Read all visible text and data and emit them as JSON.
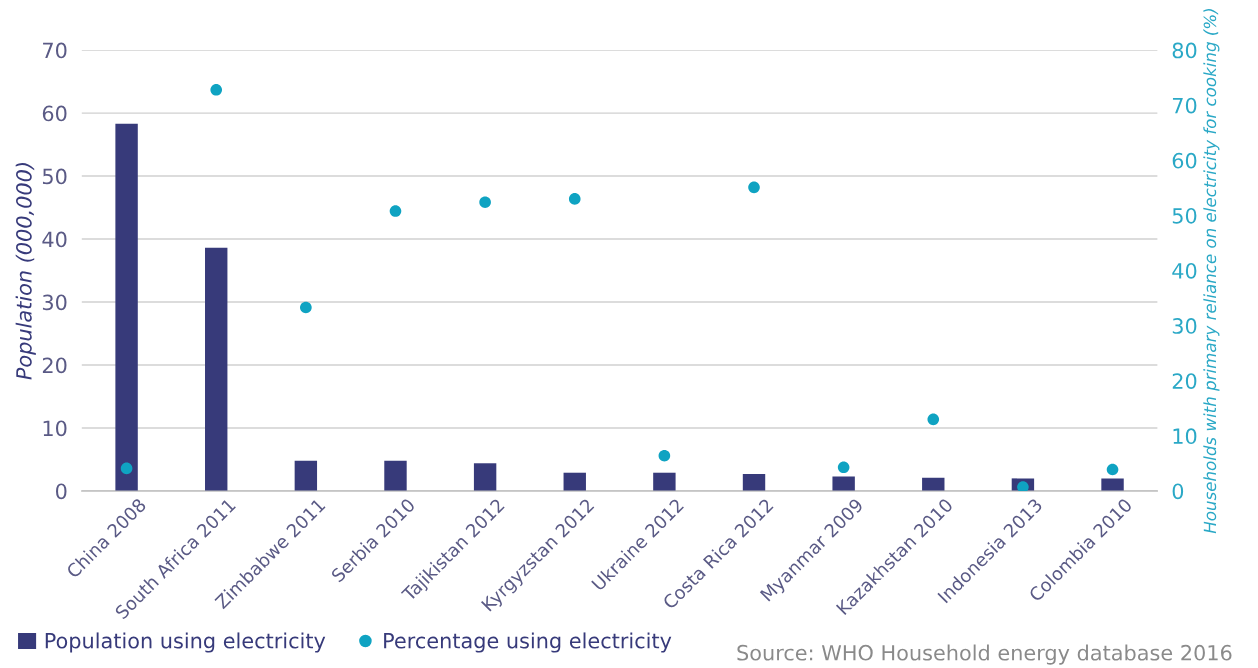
{
  "chart_data": {
    "type": "bar",
    "categories": [
      "China 2008",
      "South Africa 2011",
      "Zimbabwe 2011",
      "Serbia 2010",
      "Tajikistan 2012",
      "Kyrgyzstan 2012",
      "Ukraine 2012",
      "Costa Rica 2012",
      "Myanmar 2009",
      "Kazakhstan 2010",
      "Indonesia 2013",
      "Colombia 2010"
    ],
    "series": [
      {
        "name": "Population using electricity",
        "color": "#373a7a",
        "values": [
          58.3,
          38.6,
          4.8,
          4.8,
          4.4,
          2.9,
          2.9,
          2.7,
          2.3,
          2.1,
          2.0,
          2.0
        ]
      },
      {
        "name": "Percentage using electricity",
        "type": "scatter",
        "axis": "y2",
        "color": "#0fa3c2",
        "values": [
          4.1,
          72.8,
          33.3,
          50.8,
          52.4,
          53.0,
          6.4,
          55.1,
          4.3,
          13.0,
          0.7,
          3.9
        ]
      }
    ],
    "ylabel": "Population (000,000)",
    "y2label": "Households with primary reliance on electricity for cooking (%)",
    "ylim": [
      0,
      70
    ],
    "yticks": [
      0,
      10,
      20,
      30,
      40,
      50,
      60,
      70
    ],
    "y2lim": [
      0,
      80
    ],
    "y2ticks": [
      0,
      10,
      20,
      30,
      40,
      50,
      60,
      70,
      80
    ],
    "grid": "y",
    "legend": "bottom",
    "marker": "circle",
    "annotations": [
      "Source: WHO Household energy database 2016"
    ]
  }
}
